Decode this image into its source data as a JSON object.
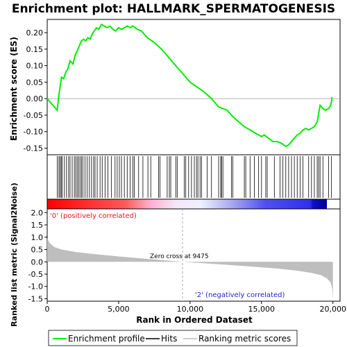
{
  "chart_data": {
    "type": "line",
    "title": "Enrichment plot: HALLMARK_SPERMATOGENESIS",
    "xlabel": "Rank in Ordered Dataset",
    "x_ticks": [
      0,
      5000,
      10000,
      15000,
      20000
    ],
    "x_tick_labels": [
      "0",
      "5,000",
      "10,000",
      "15,000",
      "20,000"
    ],
    "xlim": [
      0,
      20500
    ],
    "top_panel": {
      "ylabel": "Enrichment score (ES)",
      "ylim": [
        -0.17,
        0.24
      ],
      "y_ticks": [
        -0.15,
        -0.1,
        -0.05,
        0.0,
        0.05,
        0.1,
        0.15,
        0.2
      ],
      "y_tick_labels": [
        "-0.15",
        "-0.10",
        "-0.05",
        "0.00",
        "0.05",
        "0.10",
        "0.15",
        "0.20"
      ],
      "series": [
        {
          "name": "Enrichment profile",
          "color": "#00ee00",
          "x": [
            0,
            700,
            800,
            900,
            1000,
            1150,
            1300,
            1450,
            1600,
            1800,
            1950,
            2100,
            2250,
            2400,
            2550,
            2700,
            2850,
            3000,
            3150,
            3300,
            3450,
            3600,
            3800,
            4000,
            4200,
            4400,
            4600,
            4800,
            5000,
            5200,
            5400,
            5600,
            5800,
            6000,
            6300,
            6600,
            7000,
            7500,
            8000,
            8500,
            9000,
            9500,
            10000,
            10500,
            11000,
            11500,
            12000,
            12300,
            12600,
            13000,
            13400,
            13800,
            14200,
            14600,
            15000,
            15200,
            15500,
            15800,
            16100,
            16400,
            16700,
            16900,
            17100,
            17300,
            17500,
            17700,
            17900,
            18100,
            18300,
            18500,
            18700,
            18900,
            19100,
            19300,
            19500,
            19700,
            19850,
            19950
          ],
          "y": [
            0.0,
            -0.035,
            0.005,
            0.035,
            0.065,
            0.06,
            0.08,
            0.09,
            0.115,
            0.105,
            0.13,
            0.145,
            0.16,
            0.175,
            0.18,
            0.175,
            0.185,
            0.18,
            0.195,
            0.205,
            0.215,
            0.21,
            0.225,
            0.22,
            0.215,
            0.22,
            0.21,
            0.205,
            0.215,
            0.21,
            0.215,
            0.22,
            0.215,
            0.22,
            0.21,
            0.205,
            0.185,
            0.17,
            0.15,
            0.125,
            0.1,
            0.075,
            0.05,
            0.035,
            0.02,
            0.0,
            -0.025,
            -0.03,
            -0.035,
            -0.055,
            -0.07,
            -0.085,
            -0.095,
            -0.105,
            -0.115,
            -0.11,
            -0.12,
            -0.13,
            -0.13,
            -0.135,
            -0.145,
            -0.14,
            -0.13,
            -0.12,
            -0.11,
            -0.105,
            -0.095,
            -0.09,
            -0.095,
            -0.09,
            -0.085,
            -0.07,
            -0.02,
            -0.03,
            -0.035,
            -0.03,
            -0.02,
            0.005
          ]
        }
      ],
      "hits": [
        700,
        820,
        900,
        980,
        1050,
        1200,
        1350,
        1500,
        1600,
        1750,
        1900,
        2000,
        2100,
        2200,
        2300,
        2400,
        2500,
        2650,
        2800,
        2950,
        3100,
        3250,
        3350,
        3500,
        3700,
        3850,
        4050,
        4250,
        4500,
        4750,
        4900,
        5050,
        5200,
        5400,
        5600,
        5800,
        6000,
        6100,
        6400,
        6700,
        7050,
        7250,
        7800,
        7900,
        8400,
        8550,
        8650,
        9000,
        9100,
        9600,
        9700,
        9900,
        10100,
        10300,
        10450,
        10550,
        10700,
        10800,
        11200,
        11500,
        12000,
        12150,
        12200,
        12300,
        12900,
        13000,
        13800,
        13900,
        14200,
        14500,
        14800,
        15000,
        15300,
        15400,
        15900,
        16300,
        16500,
        16700,
        16900,
        17100,
        17300,
        17500,
        17700,
        17900,
        18300,
        18500,
        18700,
        18900,
        19000,
        19100,
        19300,
        19700,
        19900
      ]
    },
    "bottom_panel": {
      "ylabel": "Ranked list metric (Signal2Noise)",
      "ylim": [
        -1.6,
        2.15
      ],
      "y_ticks": [
        -1.5,
        -1.0,
        -0.5,
        0.0,
        0.5,
        1.0,
        1.5,
        2.0
      ],
      "y_tick_labels": [
        "-1.5",
        "-1.0",
        "-0.5",
        "0.0",
        "0.5",
        "1.0",
        "1.5",
        "2.0"
      ],
      "metric_x": [
        0,
        200,
        500,
        1000,
        2000,
        3000,
        5000,
        7000,
        9475,
        12000,
        14000,
        16000,
        17500,
        18500,
        19200,
        19600,
        19850,
        19950,
        20000
      ],
      "metric_y": [
        0.95,
        0.75,
        0.6,
        0.5,
        0.4,
        0.33,
        0.22,
        0.12,
        0.0,
        -0.1,
        -0.18,
        -0.27,
        -0.36,
        -0.45,
        -0.55,
        -0.68,
        -0.85,
        -1.1,
        -1.5
      ],
      "zero_cross_rank": 9475,
      "zero_cross_text": "Zero cross at 9475",
      "pos_label": "'0' (positively correlated)",
      "neg_label": "'2' (negatively correlated)"
    },
    "legend": {
      "placement": "bottom",
      "entries": [
        {
          "label": "Enrichment profile",
          "color": "#00ee00"
        },
        {
          "label": "Hits",
          "color": "#000000"
        },
        {
          "label": "Ranking metric scores",
          "color": "#bebebe"
        }
      ]
    },
    "colors": {
      "enrichment": "#00ee00",
      "metric_fill": "#bebebe",
      "pos_label": "#e8161b",
      "neg_label": "#1f1fd6"
    }
  }
}
